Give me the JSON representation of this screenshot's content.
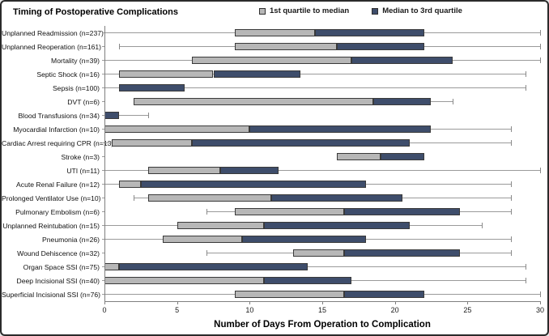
{
  "figure": {
    "title": "Timing of Postoperative Complications",
    "x_axis_title": "Number of Days From Operation to Complication",
    "legend": [
      {
        "label": "1st quartile to median",
        "color": "#b7b7b7"
      },
      {
        "label": "Median to 3rd quartile",
        "color": "#3e4d6b"
      }
    ]
  },
  "colors": {
    "q1_median_fill": "#b7b7b7",
    "median_q3_fill": "#3e4d6b",
    "bar_border": "#3a3a3a",
    "whisker": "#9a9a9a",
    "axis": "#7f7f7f",
    "background": "#ffffff",
    "figure_border": "#2b2b2b"
  },
  "chart_data": {
    "type": "bar",
    "subtype": "horizontal-quartile-range-boxes-with-whiskers",
    "title": "Timing of Postoperative Complications",
    "xlabel": "Number of Days From Operation to Complication",
    "ylabel": "",
    "xlim": [
      0,
      30
    ],
    "x_ticks": [
      0,
      5,
      10,
      15,
      20,
      25,
      30
    ],
    "grid": false,
    "legend_position": "top-center",
    "series_legend": [
      "1st quartile to median",
      "Median to 3rd quartile"
    ],
    "categories": [
      "Unplanned Readmission (n=237)",
      "Unplanned Reoperation (n=161)",
      "Mortality (n=39)",
      "Septic Shock (n=16)",
      "Sepsis (n=100)",
      "DVT (n=6)",
      "Blood Transfusions (n=34)",
      "Myocardial Infarction (n=10)",
      "Cardiac Arrest requiring CPR (n=13)",
      "Stroke (n=3)",
      "UTI (n=11)",
      "Acute Renal Failure (n=12)",
      "Prolonged Ventilator Use (n=10)",
      "Pulmonary Embolism (n=6)",
      "Unplanned Reintubation (n=15)",
      "Pneumonia (n=26)",
      "Wound Dehiscence (n=32)",
      "Organ Space SSI (n=75)",
      "Deep Incisional SSI (n=40)",
      "Superficial Incisional SSI (n=76)"
    ],
    "rows": [
      {
        "label": "Unplanned Readmission (n=237)",
        "n": 237,
        "min": 0,
        "q1": 9,
        "median": 14.5,
        "q3": 22,
        "max": 30
      },
      {
        "label": "Unplanned Reoperation (n=161)",
        "n": 161,
        "min": 1,
        "q1": 9,
        "median": 16,
        "q3": 22,
        "max": 30
      },
      {
        "label": "Mortality (n=39)",
        "n": 39,
        "min": 0,
        "q1": 6,
        "median": 17,
        "q3": 24,
        "max": 30
      },
      {
        "label": "Septic Shock (n=16)",
        "n": 16,
        "min": 0,
        "q1": 1,
        "median": 7.5,
        "q3": 13.5,
        "max": 29
      },
      {
        "label": "Sepsis (n=100)",
        "n": 100,
        "min": 0,
        "q1": 1,
        "median": 1,
        "q3": 5.5,
        "max": 29
      },
      {
        "label": "DVT (n=6)",
        "n": 6,
        "min": 2,
        "q1": 2,
        "median": 18.5,
        "q3": 22.5,
        "max": 24
      },
      {
        "label": "Blood Transfusions (n=34)",
        "n": 34,
        "min": 0,
        "q1": 0,
        "median": 0,
        "q3": 1,
        "max": 3
      },
      {
        "label": "Myocardial Infarction (n=10)",
        "n": 10,
        "min": 0,
        "q1": 0,
        "median": 10,
        "q3": 22.5,
        "max": 28
      },
      {
        "label": "Cardiac Arrest requiring CPR (n=13)",
        "n": 13,
        "min": 0,
        "q1": 0.5,
        "median": 6,
        "q3": 21,
        "max": 28
      },
      {
        "label": "Stroke (n=3)",
        "n": 3,
        "min": 16,
        "q1": 16,
        "median": 19,
        "q3": 22,
        "max": 22
      },
      {
        "label": "UTI (n=11)",
        "n": 11,
        "min": 0,
        "q1": 3,
        "median": 8,
        "q3": 12,
        "max": 30
      },
      {
        "label": "Acute Renal Failure (n=12)",
        "n": 12,
        "min": 0,
        "q1": 1,
        "median": 2.5,
        "q3": 18,
        "max": 28
      },
      {
        "label": "Prolonged Ventilator Use (n=10)",
        "n": 10,
        "min": 2,
        "q1": 3,
        "median": 11.5,
        "q3": 20.5,
        "max": 28
      },
      {
        "label": "Pulmonary Embolism (n=6)",
        "n": 6,
        "min": 7,
        "q1": 9,
        "median": 16.5,
        "q3": 24.5,
        "max": 28
      },
      {
        "label": "Unplanned Reintubation (n=15)",
        "n": 15,
        "min": 0,
        "q1": 5,
        "median": 11,
        "q3": 21,
        "max": 26
      },
      {
        "label": "Pneumonia (n=26)",
        "n": 26,
        "min": 0,
        "q1": 4,
        "median": 9.5,
        "q3": 18,
        "max": 28
      },
      {
        "label": "Wound Dehiscence (n=32)",
        "n": 32,
        "min": 7,
        "q1": 13,
        "median": 16.5,
        "q3": 24.5,
        "max": 28
      },
      {
        "label": "Organ Space SSI (n=75)",
        "n": 75,
        "min": 0,
        "q1": 0,
        "median": 1,
        "q3": 14,
        "max": 29
      },
      {
        "label": "Deep Incisional SSI (n=40)",
        "n": 40,
        "min": 0,
        "q1": 0,
        "median": 11,
        "q3": 17,
        "max": 29
      },
      {
        "label": "Superficial Incisional SSI (n=76)",
        "n": 76,
        "min": 0,
        "q1": 9,
        "median": 16.5,
        "q3": 22,
        "max": 30
      }
    ]
  }
}
